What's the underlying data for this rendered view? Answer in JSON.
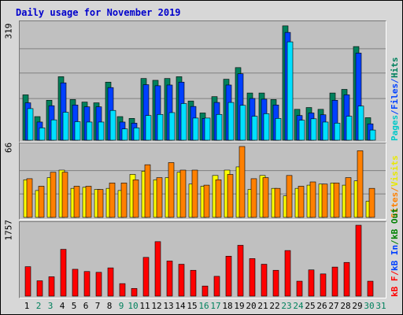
{
  "title": "Daily usage for November 2019",
  "colors": {
    "hits": "#00805c",
    "files": "#0040ff",
    "pages": "#00e0ff",
    "visits": "#ffff00",
    "sites": "#ff8000",
    "kbin": "#ff0000",
    "label_hits": "#00805c",
    "label_files": "#0040ff",
    "label_pages": "#00c8c8",
    "label_visits": "#e8e800",
    "label_sites": "#ff8000",
    "label_kbin": "#ff0000",
    "label_kbout": "#008000",
    "weekend": "#00805c",
    "weekday": "#000000"
  },
  "labels": {
    "panel1_ymax": "319",
    "panel2_ymax": "66",
    "panel3_ymax": "1757",
    "panel1_right": [
      {
        "text": "Pages",
        "color": "label_pages"
      },
      {
        "text": " / ",
        "color": "label_files"
      },
      {
        "text": "Files",
        "color": "label_files"
      },
      {
        "text": " / ",
        "color": "label_files"
      },
      {
        "text": "Hits",
        "color": "label_hits"
      }
    ],
    "panel2_right": [
      {
        "text": "Sites",
        "color": "label_sites"
      },
      {
        "text": " / ",
        "color": "label_sites"
      },
      {
        "text": "Visits",
        "color": "label_visits"
      }
    ],
    "panel3_right": [
      {
        "text": "kB F",
        "color": "label_kbin"
      },
      {
        "text": " / ",
        "color": "label_kbin"
      },
      {
        "text": "kB In",
        "color": "label_files"
      },
      {
        "text": " / ",
        "color": "label_kbout"
      },
      {
        "text": "kB Out",
        "color": "label_kbout"
      }
    ]
  },
  "chart_data": {
    "type": "bar",
    "x": [
      "1",
      "2",
      "3",
      "4",
      "5",
      "6",
      "7",
      "8",
      "9",
      "10",
      "11",
      "12",
      "13",
      "14",
      "15",
      "16",
      "17",
      "18",
      "19",
      "20",
      "21",
      "22",
      "23",
      "24",
      "25",
      "26",
      "27",
      "28",
      "29",
      "30",
      "31"
    ],
    "weekend_days": [
      2,
      3,
      9,
      10,
      16,
      17,
      23,
      24,
      30,
      31
    ],
    "panels": [
      {
        "name": "hits_files_pages",
        "ymax": 319,
        "series": [
          {
            "name": "Hits",
            "color": "hits",
            "values": [
              125,
              65,
              110,
              175,
              112,
              105,
              103,
              160,
              65,
              60,
              170,
              165,
              170,
              175,
              108,
              75,
              120,
              168,
              200,
              130,
              130,
              112,
              315,
              85,
              90,
              85,
              130,
              140,
              258,
              62,
              0
            ]
          },
          {
            "name": "Files",
            "color": "files",
            "values": [
              103,
              50,
              95,
              158,
              97,
              92,
              92,
              145,
              50,
              47,
              153,
              150,
              152,
              160,
              93,
              60,
              104,
              152,
              183,
              115,
              113,
              97,
              297,
              68,
              75,
              70,
              110,
              125,
              240,
              45,
              0
            ]
          },
          {
            "name": "Pages",
            "color": "pages",
            "values": [
              87,
              34,
              56,
              77,
              51,
              50,
              50,
              82,
              31,
              34,
              68,
              71,
              76,
              101,
              61,
              61,
              71,
              104,
              96,
              66,
              73,
              60,
              271,
              55,
              59,
              50,
              47,
              66,
              94,
              28,
              0
            ]
          }
        ]
      },
      {
        "name": "visits_sites",
        "ymax": 66,
        "series": [
          {
            "name": "Visits",
            "color": "visits",
            "values": [
              35,
              25,
              37,
              44,
              27,
              28,
              26,
              27,
              25,
              40,
              43,
              35,
              37,
              42,
              31,
              29,
              39,
              44,
              47,
              26,
              39,
              27,
              20,
              27,
              30,
              31,
              32,
              30,
              34,
              15,
              0
            ]
          },
          {
            "name": "Sites",
            "color": "sites",
            "values": [
              36,
              29,
              42,
              42,
              29,
              29,
              26,
              32,
              32,
              35,
              49,
              37,
              51,
              44,
              44,
              30,
              35,
              40,
              66,
              36,
              37,
              27,
              39,
              29,
              33,
              31,
              32,
              37,
              62,
              27,
              0
            ]
          }
        ]
      },
      {
        "name": "kbytes",
        "ymax": 1757,
        "series": [
          {
            "name": "kB F",
            "color": "kbin",
            "values": [
              730,
              380,
              480,
              1160,
              665,
              610,
              590,
              700,
              310,
              190,
              960,
              1350,
              870,
              790,
              640,
              250,
              490,
              990,
              1260,
              930,
              790,
              640,
              1130,
              370,
              650,
              550,
              720,
              835,
              1757,
              370,
              0
            ]
          }
        ]
      }
    ]
  }
}
